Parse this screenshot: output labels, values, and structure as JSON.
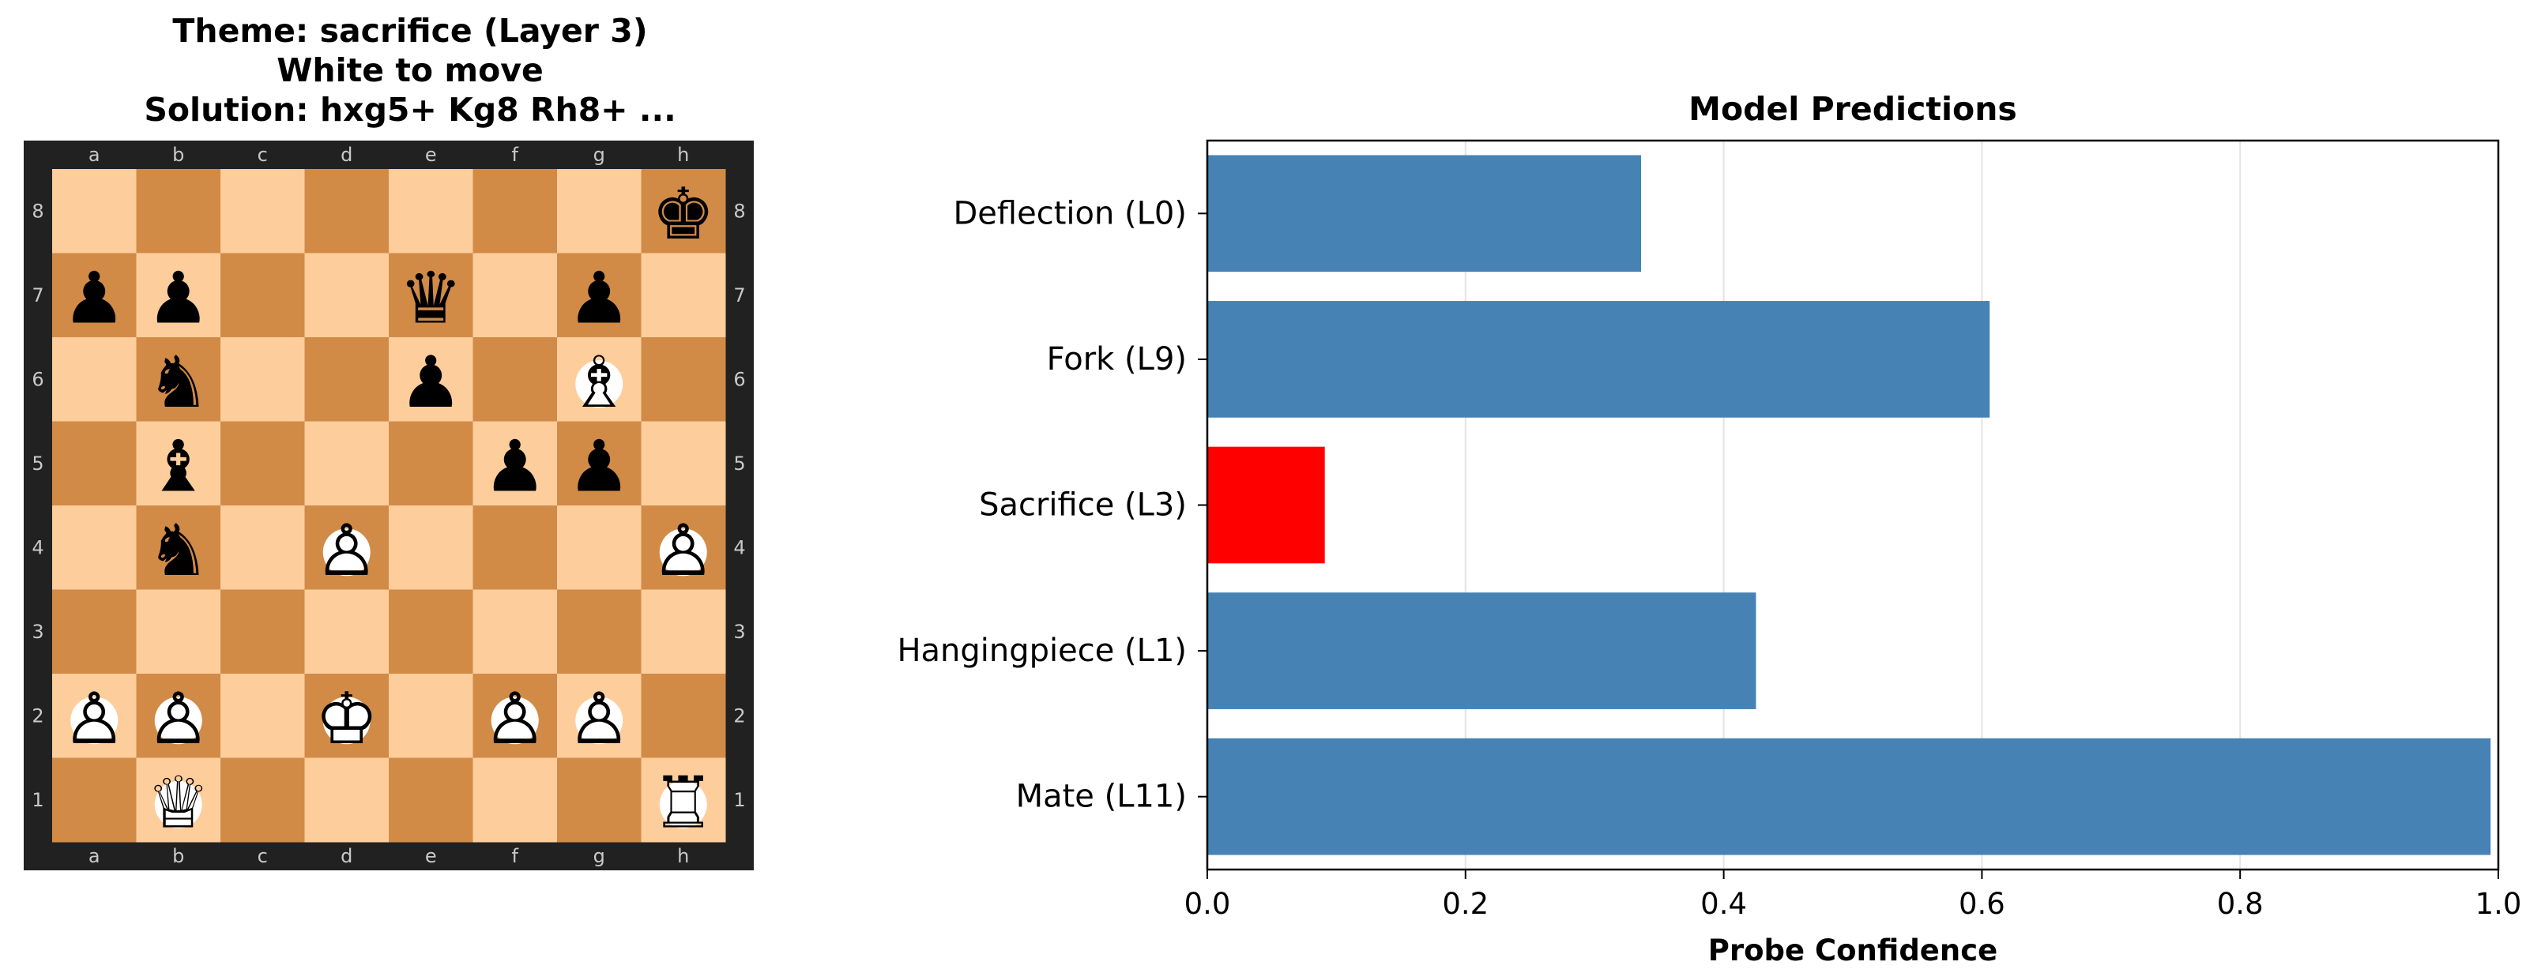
{
  "board_panel": {
    "title_lines": [
      "Theme: sacrifice (Layer 3)",
      "White to move",
      "Solution: hxg5+ Kg8 Rh8+ ..."
    ],
    "files": [
      "a",
      "b",
      "c",
      "d",
      "e",
      "f",
      "g",
      "h"
    ],
    "ranks": [
      "8",
      "7",
      "6",
      "5",
      "4",
      "3",
      "2",
      "1"
    ],
    "colors": {
      "light": "#fecd9c",
      "dark": "#d18b47",
      "border": "#212121",
      "coord": "#c9c9c9"
    },
    "pieces": [
      {
        "square": "h8",
        "piece": "k"
      },
      {
        "square": "a7",
        "piece": "p"
      },
      {
        "square": "b7",
        "piece": "p"
      },
      {
        "square": "e7",
        "piece": "q"
      },
      {
        "square": "g7",
        "piece": "p"
      },
      {
        "square": "b6",
        "piece": "n"
      },
      {
        "square": "e6",
        "piece": "p"
      },
      {
        "square": "g6",
        "piece": "B"
      },
      {
        "square": "b5",
        "piece": "b"
      },
      {
        "square": "f5",
        "piece": "p"
      },
      {
        "square": "g5",
        "piece": "p"
      },
      {
        "square": "b4",
        "piece": "n"
      },
      {
        "square": "d4",
        "piece": "P"
      },
      {
        "square": "h4",
        "piece": "P"
      },
      {
        "square": "a2",
        "piece": "P"
      },
      {
        "square": "b2",
        "piece": "P"
      },
      {
        "square": "d2",
        "piece": "K"
      },
      {
        "square": "f2",
        "piece": "P"
      },
      {
        "square": "g2",
        "piece": "P"
      },
      {
        "square": "b1",
        "piece": "Q"
      },
      {
        "square": "h1",
        "piece": "R"
      }
    ]
  },
  "chart_data": {
    "type": "bar",
    "orientation": "horizontal",
    "title": "Model Predictions",
    "xlabel": "Probe Confidence",
    "ylabel": "",
    "xlim": [
      0.0,
      1.0
    ],
    "xticks": [
      "0.0",
      "0.2",
      "0.4",
      "0.6",
      "0.8",
      "1.0"
    ],
    "grid": "x",
    "categories": [
      "Deflection (L0)",
      "Fork (L9)",
      "Sacrifice (L3)",
      "Hangingpiece (L1)",
      "Mate (L11)"
    ],
    "values": [
      0.336,
      0.606,
      0.091,
      0.425,
      0.994
    ],
    "colors": [
      "#4682b4",
      "#4682b4",
      "#ff0000",
      "#4682b4",
      "#4682b4"
    ],
    "highlight": "Sacrifice (L3)"
  }
}
